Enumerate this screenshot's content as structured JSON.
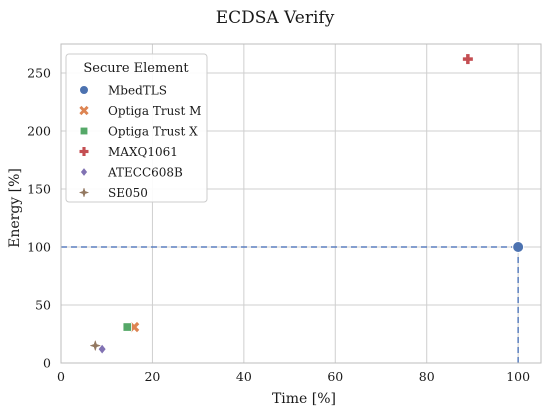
{
  "chart_data": {
    "type": "scatter",
    "title": "ECDSA Verify",
    "xlabel": "Time [%]",
    "ylabel": "Energy [%]",
    "xlim": [
      0,
      105
    ],
    "ylim": [
      0,
      275
    ],
    "xticks": [
      0,
      20,
      40,
      60,
      80,
      100
    ],
    "yticks": [
      0,
      50,
      100,
      150,
      200,
      250
    ],
    "grid": true,
    "legend": {
      "title": "Secure Element",
      "placement": "upper-left"
    },
    "series": [
      {
        "name": "MbedTLS",
        "marker": "circle",
        "color": "#4c72b0",
        "x": 100,
        "y": 100
      },
      {
        "name": "Optiga Trust M",
        "marker": "x",
        "color": "#dd8452",
        "x": 16,
        "y": 31
      },
      {
        "name": "Optiga Trust X",
        "marker": "square",
        "color": "#55a868",
        "x": 14.5,
        "y": 31
      },
      {
        "name": "MAXQ1061",
        "marker": "plus",
        "color": "#c44e52",
        "x": 89,
        "y": 262
      },
      {
        "name": "ATECC608B",
        "marker": "diamond",
        "color": "#8172b3",
        "x": 9,
        "y": 12
      },
      {
        "name": "SE050",
        "marker": "star",
        "color": "#937860",
        "x": 7.5,
        "y": 15
      }
    ],
    "reference_lines": {
      "horizontal_y": 100,
      "vertical_x": 100,
      "color": "#5b7fbf",
      "style": "dashed"
    }
  }
}
